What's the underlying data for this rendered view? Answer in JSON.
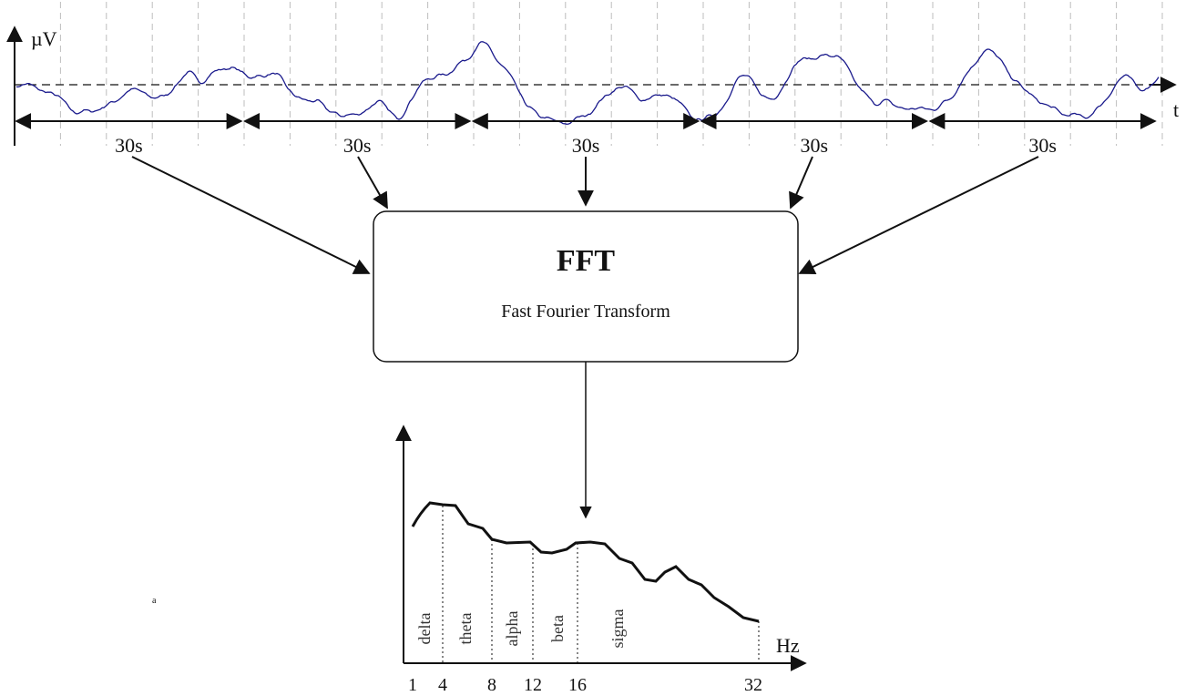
{
  "signal": {
    "y_label": "µV",
    "x_label": "t",
    "segment_count": 5,
    "segment_labels": [
      "30s",
      "30s",
      "30s",
      "30s",
      "30s"
    ],
    "trace_color": "#1a1a8c"
  },
  "fft_box": {
    "title": "FFT",
    "subtitle": "Fast Fourier Transform"
  },
  "spectrum": {
    "x_label": "Hz",
    "band_labels": [
      "delta",
      "theta",
      "alpha",
      "beta",
      "sigma"
    ],
    "tick_labels": [
      "1",
      "4",
      "8",
      "12",
      "16",
      "32"
    ]
  },
  "stray_mark": "a"
}
